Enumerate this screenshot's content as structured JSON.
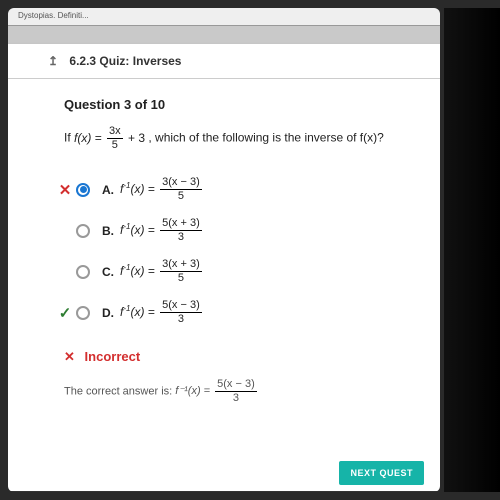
{
  "browser": {
    "partial_text": "Dystopias. Definiti..."
  },
  "quiz_header": {
    "arrow": "↥",
    "title": "6.2.3 Quiz: Inverses"
  },
  "question": {
    "title": "Question 3 of 10",
    "stem_prefix": "If ",
    "fx_lhs": "f(x) = ",
    "fx_frac_num": "3x",
    "fx_frac_den": "5",
    "fx_tail": " + 3",
    "stem_suffix": ", which of the following is the inverse of f(x)?"
  },
  "choices": [
    {
      "letter": "A.",
      "num": "3(x − 3)",
      "den": "5",
      "selected": true,
      "mark": "wrong"
    },
    {
      "letter": "B.",
      "num": "5(x + 3)",
      "den": "3",
      "selected": false,
      "mark": ""
    },
    {
      "letter": "C.",
      "num": "3(x + 3)",
      "den": "5",
      "selected": false,
      "mark": ""
    },
    {
      "letter": "D.",
      "num": "5(x − 3)",
      "den": "3",
      "selected": false,
      "mark": "right"
    }
  ],
  "feedback": {
    "icon": "✕",
    "text": "Incorrect"
  },
  "correct": {
    "prefix": "The correct answer is: ",
    "lhs": "f⁻¹(x) = ",
    "num": "5(x − 3)",
    "den": "3"
  },
  "next_button": "NEXT QUEST",
  "style": {
    "accent": "#1976d2",
    "wrong_color": "#d32f2f",
    "right_color": "#2e7d32",
    "next_bg": "#16b4a8"
  }
}
